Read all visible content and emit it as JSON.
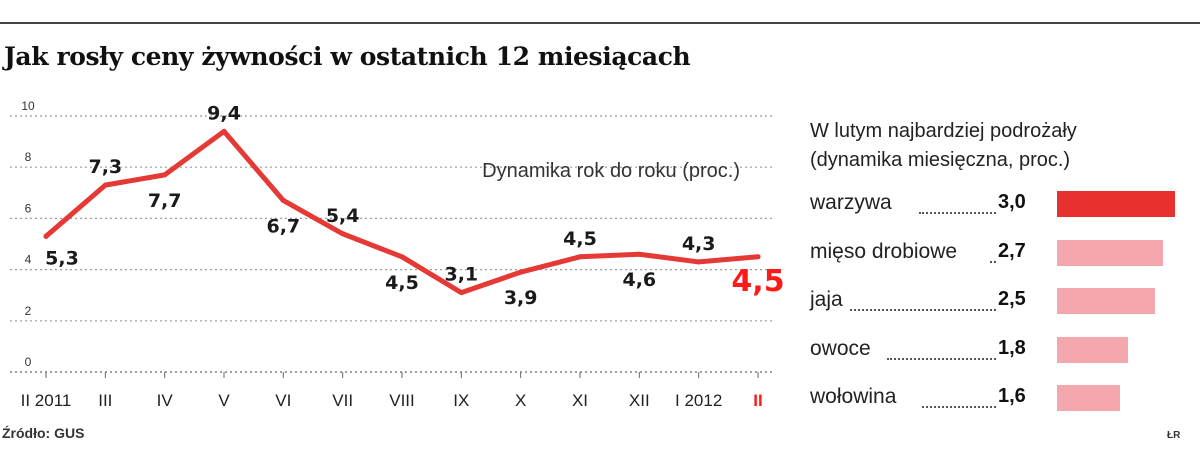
{
  "title": "Jak rosły ceny żywności w ostatnich 12 miesiącach",
  "chart_data": {
    "type": "line",
    "subtitle": "Dynamika rok do roku (proc.)",
    "categories": [
      "II 2011",
      "III",
      "IV",
      "V",
      "VI",
      "VII",
      "VIII",
      "IX",
      "X",
      "XI",
      "XII",
      "I 2012",
      "II"
    ],
    "values": [
      5.3,
      7.3,
      7.7,
      9.4,
      6.7,
      5.4,
      4.5,
      3.1,
      3.9,
      4.5,
      4.6,
      4.3,
      4.5
    ],
    "data_labels": [
      "5.3",
      "7.3",
      "7.7",
      "9.4",
      "6.7",
      "5.4",
      "4.5",
      "3.1",
      "3.9",
      "4.5",
      "4.6",
      "4.3",
      "4.5"
    ],
    "yticks": [
      0,
      2,
      4,
      6,
      8,
      10
    ],
    "ylim": [
      0,
      10
    ],
    "grid": true,
    "series_color": "#e53935",
    "highlight_color": "#ff1a1a"
  },
  "side_chart": {
    "title_line1": "W lutym najbardziej podrożały",
    "title_line2": "(dynamika miesięczna, proc.)",
    "type": "bar",
    "items": [
      {
        "label": "warzywa",
        "value": 3.0,
        "value_label": "3,0"
      },
      {
        "label": "mięso drobiowe",
        "value": 2.7,
        "value_label": "2,7"
      },
      {
        "label": "jaja",
        "value": 2.5,
        "value_label": "2,5"
      },
      {
        "label": "owoce",
        "value": 1.8,
        "value_label": "1,8"
      },
      {
        "label": "wołowina",
        "value": 1.6,
        "value_label": "1,6"
      }
    ],
    "top_color": "#e8302e",
    "other_color": "#f4a8ad"
  },
  "source": "Źródło: GUS",
  "credit": "ŁR"
}
